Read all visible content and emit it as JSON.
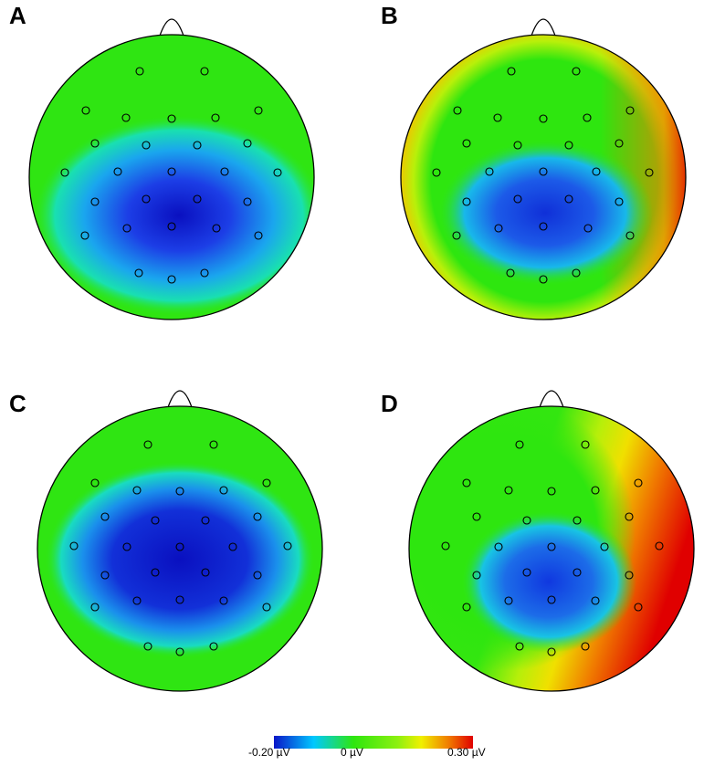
{
  "panels": [
    {
      "label": "A",
      "icon": "eeg-scalp-topography"
    },
    {
      "label": "B",
      "icon": "eeg-scalp-topography"
    },
    {
      "label": "C",
      "icon": "eeg-scalp-topography"
    },
    {
      "label": "D",
      "icon": "eeg-scalp-topography"
    }
  ],
  "colorbar": {
    "min_label": "-0.20 µV",
    "zero_label": "0 µV",
    "max_label": "0.30 µV",
    "colors": [
      "#0a16c8",
      "#00c8ff",
      "#2ee60f",
      "#f0f000",
      "#e00000"
    ]
  }
}
